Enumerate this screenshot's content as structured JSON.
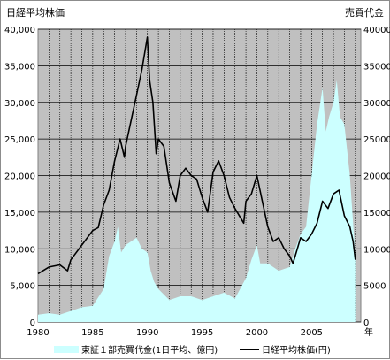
{
  "chart_data": {
    "type": "line",
    "title": "",
    "left_axis_label": "日経平均株価",
    "right_axis_label": "売買代金",
    "xlabel": "年",
    "x_ticks": [
      "1980",
      "1985",
      "1990",
      "1995",
      "2000",
      "2005"
    ],
    "xlim": [
      1980,
      2009.5
    ],
    "y_ticks_left": [
      "0",
      "5,000",
      "10,000",
      "15,000",
      "20,000",
      "25,000",
      "30,000",
      "35,000",
      "40,000"
    ],
    "y_ticks_right": [
      "0",
      "5000",
      "10000",
      "15000",
      "20000",
      "25000",
      "30000",
      "35000",
      "40000"
    ],
    "ylim": [
      0,
      40000
    ],
    "grid": true,
    "plot_background": "#c0c0c0",
    "legend_position": "bottom",
    "series": [
      {
        "name": "東証１部売買代金(1日平均、億円)",
        "kind": "area",
        "color": "#ccffff",
        "x": [
          1980,
          1981,
          1982,
          1983,
          1984,
          1985,
          1986,
          1986.5,
          1987,
          1987.3,
          1987.6,
          1988,
          1988.5,
          1989,
          1989.5,
          1990,
          1990.3,
          1990.6,
          1991,
          1992,
          1993,
          1994,
          1995,
          1996,
          1997,
          1998,
          1999,
          1999.5,
          2000,
          2000.3,
          2001,
          2002,
          2003,
          2003.5,
          2004,
          2004.5,
          2005,
          2005.5,
          2006,
          2006.3,
          2006.6,
          2007,
          2007.3,
          2007.6,
          2008,
          2008.5,
          2009
        ],
        "values": [
          1000,
          1200,
          1000,
          1500,
          2000,
          2200,
          4500,
          9000,
          11000,
          13000,
          9500,
          10500,
          11000,
          11500,
          10000,
          9500,
          7000,
          5500,
          4500,
          3000,
          3500,
          3500,
          3000,
          3500,
          4000,
          3200,
          6000,
          8500,
          10500,
          8000,
          8000,
          7000,
          7500,
          10000,
          12000,
          13000,
          20000,
          27000,
          32000,
          26000,
          28000,
          30000,
          33000,
          28000,
          27000,
          20000,
          9000
        ]
      },
      {
        "name": "日経平均株価(円)",
        "kind": "line",
        "color": "#000000",
        "x": [
          1980,
          1981,
          1982,
          1982.7,
          1983,
          1984,
          1984.5,
          1985,
          1985.5,
          1986,
          1986.5,
          1987,
          1987.5,
          1987.9,
          1988,
          1988.5,
          1989,
          1989.5,
          1989.99,
          1990.2,
          1990.5,
          1990.8,
          1991,
          1991.5,
          1992,
          1992.6,
          1993,
          1993.5,
          1994,
          1994.5,
          1995,
          1995.5,
          1996,
          1996.5,
          1997,
          1997.5,
          1998,
          1998.8,
          1999,
          1999.5,
          2000,
          2000.5,
          2001,
          2001.5,
          2002,
          2002.5,
          2003,
          2003.3,
          2003.6,
          2004,
          2004.5,
          2005,
          2005.5,
          2006,
          2006.5,
          2007,
          2007.5,
          2008,
          2008.5,
          2008.8,
          2009
        ],
        "values": [
          6600,
          7500,
          7800,
          7000,
          8500,
          10500,
          11500,
          12500,
          12900,
          16000,
          18000,
          22000,
          25000,
          22500,
          24000,
          27500,
          31000,
          34500,
          38900,
          33000,
          30000,
          23000,
          25000,
          24000,
          19000,
          16500,
          20000,
          21000,
          20000,
          19500,
          17000,
          15000,
          20500,
          22000,
          20000,
          17000,
          15500,
          13500,
          16500,
          17500,
          20000,
          16500,
          13000,
          11000,
          11500,
          10000,
          9000,
          8000,
          9500,
          11500,
          11000,
          12000,
          13500,
          16500,
          15500,
          17500,
          18000,
          14500,
          13000,
          11000,
          8500
        ]
      }
    ]
  }
}
